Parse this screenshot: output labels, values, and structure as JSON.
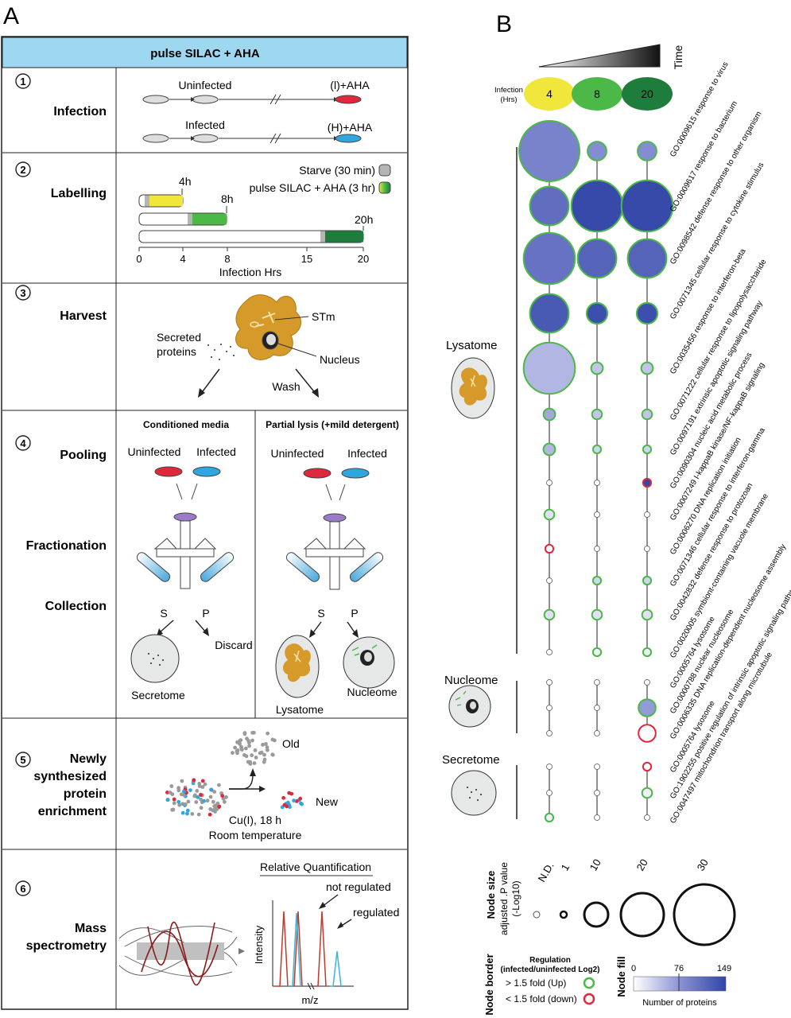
{
  "panel_a": {
    "letter": "A",
    "header": "pulse SILAC + AHA",
    "step1": {
      "num": "1",
      "title": "Infection",
      "uninfected": "Uninfected",
      "infected": "Infected",
      "light_label": "(l)+AHA",
      "heavy_label": "(H)+AHA"
    },
    "step2": {
      "num": "2",
      "title": "Labelling",
      "starve": "Starve (30 min)",
      "pulse": "pulse SILAC + AHA (3 hr)",
      "bar_labels": [
        "4h",
        "8h",
        "20h"
      ],
      "axis_ticks": [
        "0",
        "4",
        "8",
        "15",
        "20"
      ],
      "axis_label": "Infection Hrs"
    },
    "step3": {
      "num": "3",
      "title": "Harvest",
      "secreted": "Secreted",
      "proteins": "proteins",
      "stm": "STm",
      "nucleus": "Nucleus",
      "wash": "Wash"
    },
    "step4": {
      "num": "4",
      "title_pooling": "Pooling",
      "title_fractionation": "Fractionation",
      "title_collection": "Collection",
      "left_header": "Conditioned media",
      "right_header": "Partial lysis (+mild detergent)",
      "uninfected": "Uninfected",
      "infected": "Infected",
      "s": "S",
      "p": "P",
      "discard": "Discard",
      "secretome": "Secretome",
      "lysatome": "Lysatome",
      "nucleome": "Nucleome"
    },
    "step5": {
      "num": "5",
      "title_lines": [
        "Newly",
        "synthesized",
        "protein",
        "enrichment"
      ],
      "old": "Old",
      "new": "New",
      "condition1": "Cu(I), 18 h",
      "condition2": "Room temperature"
    },
    "step6": {
      "num": "6",
      "title_lines": [
        "Mass",
        "spectrometry"
      ],
      "rel_quant": "Relative Quantification",
      "not_regulated": "not regulated",
      "regulated": "regulated",
      "intensity": "Intensity",
      "mz": "m/z"
    }
  },
  "panel_b": {
    "letter": "B",
    "time_label": "Time",
    "infection_label_1": "Infection",
    "infection_label_2": "(Hrs)",
    "timepoints": [
      "4",
      "8",
      "20"
    ],
    "timepoint_colors": [
      "#f0e63c",
      "#4cb848",
      "#1e7d3c"
    ],
    "groups": {
      "lysatome": "Lysatome",
      "nucleome": "Nucleome",
      "secretome": "Secretome"
    },
    "go_terms": [
      {
        "id": "GO:0009615",
        "name": "response to virus",
        "group": "lysatome",
        "nodes": [
          {
            "size": 30,
            "fill": 90,
            "border": "up"
          },
          {
            "size": 7,
            "fill": 80,
            "border": "up"
          },
          {
            "size": 7,
            "fill": 80,
            "border": "up"
          }
        ]
      },
      {
        "id": "GO:0009617",
        "name": "response to bacterium",
        "group": "lysatome",
        "nodes": [
          {
            "size": 18,
            "fill": 110,
            "border": "up"
          },
          {
            "size": 25,
            "fill": 145,
            "border": "up"
          },
          {
            "size": 25,
            "fill": 145,
            "border": "up"
          }
        ]
      },
      {
        "id": "GO:0098542",
        "name": "defense response to other organism",
        "group": "lysatome",
        "nodes": [
          {
            "size": 25,
            "fill": 105,
            "border": "up"
          },
          {
            "size": 18,
            "fill": 120,
            "border": "up"
          },
          {
            "size": 18,
            "fill": 120,
            "border": "up"
          }
        ]
      },
      {
        "id": "GO:0071345",
        "name": "cellular response to cytokine stimulus",
        "group": "lysatome",
        "nodes": [
          {
            "size": 18,
            "fill": 130,
            "border": "up"
          },
          {
            "size": 8,
            "fill": 140,
            "border": "up"
          },
          {
            "size": 8,
            "fill": 140,
            "border": "up"
          }
        ]
      },
      {
        "id": "GO:0035456",
        "name": "response to interferon-beta",
        "group": "lysatome",
        "nodes": [
          {
            "size": 25,
            "fill": 50,
            "border": "up"
          },
          {
            "size": 3,
            "fill": 40,
            "border": "up"
          },
          {
            "size": 3,
            "fill": 40,
            "border": "up"
          }
        ]
      },
      {
        "id": "GO:0071222",
        "name": "cellular response to lipopolysaccharide",
        "group": "lysatome",
        "nodes": [
          {
            "size": 3,
            "fill": 60,
            "border": "up"
          },
          {
            "size": 2,
            "fill": 40,
            "border": "up"
          },
          {
            "size": 2,
            "fill": 40,
            "border": "up"
          }
        ]
      },
      {
        "id": "GO:0097191",
        "name": "extrinsic apoptotic signaling pathway",
        "group": "lysatome",
        "nodes": [
          {
            "size": 3,
            "fill": 50,
            "border": "up"
          },
          {
            "size": 1,
            "fill": 30,
            "border": "up"
          },
          {
            "size": 1,
            "fill": 30,
            "border": "up"
          }
        ]
      },
      {
        "id": "GO:0090304",
        "name": "nucleic acid metabolic process",
        "group": "lysatome",
        "nodes": [
          {
            "size": null,
            "fill": 0,
            "border": "none"
          },
          {
            "size": null,
            "fill": 0,
            "border": "none"
          },
          {
            "size": 1,
            "fill": 149,
            "border": "down"
          }
        ]
      },
      {
        "id": "GO:0007249",
        "name": "I-kappaB kinase/NF-kappaB signaling",
        "group": "lysatome",
        "nodes": [
          {
            "size": 2,
            "fill": 20,
            "border": "up"
          },
          {
            "size": null,
            "fill": 0,
            "border": "none"
          },
          {
            "size": null,
            "fill": 0,
            "border": "none"
          }
        ]
      },
      {
        "id": "GO:0006270",
        "name": "DNA replication initiation",
        "group": "lysatome",
        "nodes": [
          {
            "size": 1,
            "fill": 0,
            "border": "down"
          },
          {
            "size": null,
            "fill": 0,
            "border": "none"
          },
          {
            "size": null,
            "fill": 0,
            "border": "none"
          }
        ]
      },
      {
        "id": "GO:0071346",
        "name": "cellular response to interferon-gamma",
        "group": "lysatome",
        "nodes": [
          {
            "size": null,
            "fill": 0,
            "border": "none"
          },
          {
            "size": 1,
            "fill": 30,
            "border": "up"
          },
          {
            "size": 1,
            "fill": 30,
            "border": "up"
          }
        ]
      },
      {
        "id": "GO:0042832",
        "name": "defense response to protozoan",
        "group": "lysatome",
        "nodes": [
          {
            "size": 2,
            "fill": 20,
            "border": "up"
          },
          {
            "size": 2,
            "fill": 20,
            "border": "up"
          },
          {
            "size": 2,
            "fill": 20,
            "border": "up"
          }
        ]
      },
      {
        "id": "GO:0020005",
        "name": "symbiont-containing vacuole membrane",
        "group": "lysatome",
        "nodes": [
          {
            "size": null,
            "fill": 0,
            "border": "none"
          },
          {
            "size": 1,
            "fill": 10,
            "border": "up"
          },
          {
            "size": 1,
            "fill": 10,
            "border": "up"
          }
        ]
      },
      {
        "id": "GO:0005764",
        "name": "lysosome",
        "group": "lysatome",
        "nodes": [
          {
            "size": null,
            "fill": 0,
            "border": "none"
          },
          {
            "size": null,
            "fill": 0,
            "border": "none"
          },
          {
            "size": null,
            "fill": 0,
            "border": "none"
          }
        ]
      },
      {
        "id": "GO:0000788",
        "name": "nuclear nucleosome",
        "group": "nucleome",
        "nodes": [
          {
            "size": null,
            "fill": 0,
            "border": "none"
          },
          {
            "size": null,
            "fill": 0,
            "border": "none"
          },
          {
            "size": 6,
            "fill": 70,
            "border": "up"
          }
        ]
      },
      {
        "id": "GO:0006335",
        "name": "DNA replication-dependent nucleosome assembly",
        "group": "nucleome",
        "nodes": [
          {
            "size": null,
            "fill": 0,
            "border": "none"
          },
          {
            "size": null,
            "fill": 0,
            "border": "none"
          },
          {
            "size": 6,
            "fill": 0,
            "border": "down"
          }
        ]
      },
      {
        "id": "GO:0005764",
        "name": "lysosome",
        "group": "nucleome",
        "nodes": [
          {
            "size": null,
            "fill": 0,
            "border": "none"
          },
          {
            "size": null,
            "fill": 0,
            "border": "none"
          },
          {
            "size": 1,
            "fill": 0,
            "border": "down"
          }
        ]
      },
      {
        "id": "GO:1902255",
        "name": "positive regulation of intrinsic apoptotic signaling pathway by p53 class mediator",
        "group": "secretome",
        "nodes": [
          {
            "size": null,
            "fill": 0,
            "border": "none"
          },
          {
            "size": null,
            "fill": 0,
            "border": "none"
          },
          {
            "size": 2,
            "fill": 10,
            "border": "up"
          }
        ]
      },
      {
        "id": "GO:0047497",
        "name": "mitochondrion transport along microtubule",
        "group": "secretome",
        "nodes": [
          {
            "size": 1,
            "fill": 10,
            "border": "up"
          },
          {
            "size": null,
            "fill": 0,
            "border": "none"
          },
          {
            "size": null,
            "fill": 0,
            "border": "none"
          }
        ]
      },
      {
        "id": "",
        "name": "",
        "group": "secretome",
        "nodes": [
          {
            "size": 2,
            "fill": 10,
            "border": "up"
          },
          {
            "size": null,
            "fill": 0,
            "border": "none"
          },
          {
            "size": null,
            "fill": 0,
            "border": "none"
          }
        ]
      }
    ],
    "legend": {
      "node_size_title": "Node size",
      "node_size_sub1": "adjusted .P value",
      "node_size_sub2": "(-Log10)",
      "size_labels": [
        "N.D.",
        "1",
        "10",
        "20",
        "30"
      ],
      "node_border_title": "Node border",
      "regulation_title": "Regulation",
      "regulation_sub": "(infected/uninfected Log2)",
      "up_label": "> 1.5 fold (Up)",
      "down_label": "< 1.5 fold (down)",
      "up_color": "#4cb848",
      "down_color": "#e0283c",
      "node_fill_title": "Node fill",
      "fill_ticks": [
        "0",
        "76",
        "149"
      ],
      "fill_label": "Number of proteins"
    }
  }
}
